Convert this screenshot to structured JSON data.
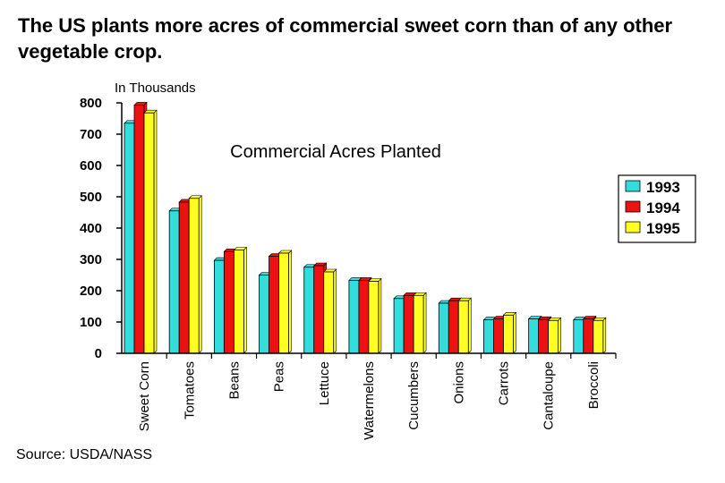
{
  "slide": {
    "title": "The US plants more acres of commercial sweet corn than of any other vegetable crop.",
    "units_label": "In Thousands",
    "source": "Source: USDA/NASS"
  },
  "chart_data": {
    "type": "bar",
    "title": "Commercial Acres Planted",
    "xlabel": "",
    "ylabel": "",
    "ylim": [
      0,
      800
    ],
    "yticks": [
      0,
      100,
      200,
      300,
      400,
      500,
      600,
      700,
      800
    ],
    "grid": false,
    "legend_position": "right",
    "categories": [
      "Sweet Corn",
      "Tomatoes",
      "Beans",
      "Peas",
      "Lettuce",
      "Watermelons",
      "Cucumbers",
      "Onions",
      "Carrots",
      "Cantaloupe",
      "Broccoli"
    ],
    "series": [
      {
        "name": "1993",
        "color": "#33dddd",
        "values": [
          735,
          455,
          297,
          250,
          275,
          233,
          175,
          160,
          107,
          110,
          107
        ]
      },
      {
        "name": "1994",
        "color": "#ee1111",
        "values": [
          793,
          483,
          325,
          310,
          280,
          233,
          185,
          168,
          110,
          108,
          110
        ]
      },
      {
        "name": "1995",
        "color": "#ffff22",
        "values": [
          768,
          495,
          330,
          320,
          260,
          230,
          185,
          168,
          122,
          105,
          105
        ]
      }
    ]
  }
}
